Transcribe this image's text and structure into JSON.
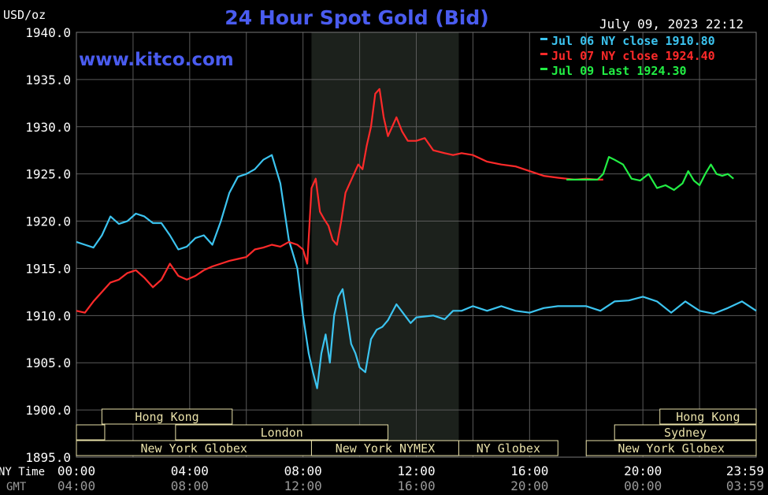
{
  "header": {
    "unit": "USD/oz",
    "title": "24 Hour Spot Gold (Bid)",
    "datetime": "July 09, 2023 22:12",
    "watermark": "www.kitco.com"
  },
  "legend": {
    "placement": "top-right",
    "items": [
      {
        "label": "Jul 06 NY close 1910.80",
        "color": "#3cc4f0"
      },
      {
        "label": "Jul 07 NY close 1924.40",
        "color": "#ff2a2a"
      },
      {
        "label": "Jul 09 Last 1924.30",
        "color": "#22ee44"
      }
    ]
  },
  "axis": {
    "ny_time_label": "NY Time",
    "gmt_label": "GMT",
    "x_ticks": [
      {
        "hour": 0,
        "ny": "00:00",
        "gmt": "04:00"
      },
      {
        "hour": 4,
        "ny": "04:00",
        "gmt": "08:00"
      },
      {
        "hour": 8,
        "ny": "08:00",
        "gmt": "12:00"
      },
      {
        "hour": 12,
        "ny": "12:00",
        "gmt": "16:00"
      },
      {
        "hour": 16,
        "ny": "16:00",
        "gmt": "20:00"
      },
      {
        "hour": 20,
        "ny": "20:00",
        "gmt": "00:00"
      },
      {
        "hour": 23.983,
        "ny": "23:59",
        "gmt": "03:59"
      }
    ],
    "y_ticks": [
      "1940.0",
      "1935.0",
      "1930.0",
      "1925.0",
      "1920.0",
      "1915.0",
      "1910.0",
      "1905.0",
      "1900.0",
      "1895.0"
    ]
  },
  "sessions": [
    {
      "label": "Hong Kong",
      "row": 0,
      "start": 0.9,
      "end": 5.5
    },
    {
      "label": "",
      "row": 1,
      "start": 0,
      "end": 1.0
    },
    {
      "label": "London",
      "row": 1,
      "start": 3.5,
      "end": 11.0
    },
    {
      "label": "New York Globex",
      "row": 2,
      "start": 0,
      "end": 8.3
    },
    {
      "label": "New York NYMEX",
      "row": 2,
      "start": 8.3,
      "end": 13.5
    },
    {
      "label": "NY Globex",
      "row": 2,
      "start": 13.5,
      "end": 17.0
    },
    {
      "label": "Hong Kong",
      "row": 0,
      "start": 20.6,
      "end": 24.0
    },
    {
      "label": "Sydney",
      "row": 1,
      "start": 19.0,
      "end": 24.0
    },
    {
      "label": "New York Globex",
      "row": 2,
      "start": 18.0,
      "end": 24.0
    }
  ],
  "colors": {
    "background": "#000000",
    "grid": "#5a5a5a",
    "shade": "#1c211c",
    "title": "#4a5cf0",
    "text": "#ffffff",
    "axis_sub": "#9a9a9a"
  },
  "chart_data": {
    "type": "line",
    "ylim": [
      1895,
      1940
    ],
    "xlim": [
      0,
      24
    ],
    "x_unit": "NY Time (hours)",
    "shaded_region": [
      8.3,
      13.5
    ],
    "grid": true,
    "series": [
      {
        "name": "Jul 06",
        "color": "#3cc4f0",
        "x": [
          0,
          0.3,
          0.6,
          0.9,
          1.2,
          1.5,
          1.8,
          2.1,
          2.4,
          2.7,
          3.0,
          3.3,
          3.6,
          3.9,
          4.2,
          4.5,
          4.8,
          5.1,
          5.4,
          5.7,
          6.0,
          6.3,
          6.6,
          6.9,
          7.2,
          7.5,
          7.8,
          8.0,
          8.2,
          8.35,
          8.5,
          8.65,
          8.8,
          8.95,
          9.1,
          9.25,
          9.4,
          9.55,
          9.7,
          9.85,
          10.0,
          10.2,
          10.4,
          10.6,
          10.8,
          11.0,
          11.3,
          11.6,
          11.8,
          12.0,
          12.3,
          12.6,
          13.0,
          13.3,
          13.6,
          14.0,
          14.5,
          15.0,
          15.5,
          16.0,
          16.5,
          17.0,
          17.5,
          18.0,
          18.5,
          19.0,
          19.5,
          20.0,
          20.5,
          21.0,
          21.5,
          22.0,
          22.5,
          23.0,
          23.5,
          24.0
        ],
        "y": [
          1917.8,
          1917.5,
          1917.2,
          1918.5,
          1920.5,
          1919.7,
          1920.0,
          1920.8,
          1920.5,
          1919.8,
          1919.8,
          1918.5,
          1917.0,
          1917.3,
          1918.2,
          1918.5,
          1917.5,
          1920.0,
          1923.0,
          1924.7,
          1925.0,
          1925.5,
          1926.5,
          1927.0,
          1924.0,
          1918.0,
          1915.0,
          1910.0,
          1906.0,
          1904.0,
          1902.3,
          1906.0,
          1908.0,
          1905.0,
          1910.0,
          1912.0,
          1912.8,
          1910.0,
          1907.0,
          1906.0,
          1904.5,
          1904.0,
          1907.5,
          1908.5,
          1908.8,
          1909.5,
          1911.2,
          1910.0,
          1909.2,
          1909.8,
          1909.9,
          1910.0,
          1909.6,
          1910.5,
          1910.5,
          1911.0,
          1910.5,
          1911.0,
          1910.5,
          1910.3,
          1910.8,
          1911.0,
          1911.0,
          1911.0,
          1910.5,
          1911.5,
          1911.6,
          1912.0,
          1911.5,
          1910.3,
          1911.5,
          1910.5,
          1910.2,
          1910.8,
          1911.5,
          1910.5
        ]
      },
      {
        "name": "Jul 07",
        "color": "#ff2a2a",
        "x": [
          0,
          0.3,
          0.6,
          0.9,
          1.2,
          1.5,
          1.8,
          2.1,
          2.4,
          2.7,
          3.0,
          3.3,
          3.6,
          3.9,
          4.2,
          4.5,
          4.8,
          5.1,
          5.4,
          5.7,
          6.0,
          6.3,
          6.6,
          6.9,
          7.2,
          7.5,
          7.8,
          8.0,
          8.15,
          8.3,
          8.45,
          8.6,
          8.75,
          8.9,
          9.05,
          9.2,
          9.35,
          9.5,
          9.65,
          9.8,
          9.95,
          10.1,
          10.25,
          10.4,
          10.55,
          10.7,
          10.85,
          11.0,
          11.15,
          11.3,
          11.5,
          11.7,
          12.0,
          12.3,
          12.6,
          13.0,
          13.3,
          13.6,
          14.0,
          14.5,
          15.0,
          15.5,
          16.0,
          16.5,
          17.0,
          17.3,
          17.6,
          18.0,
          18.4,
          18.6
        ],
        "y": [
          1910.5,
          1910.3,
          1911.5,
          1912.5,
          1913.5,
          1913.8,
          1914.5,
          1914.8,
          1914.0,
          1913.0,
          1913.8,
          1915.5,
          1914.2,
          1913.8,
          1914.2,
          1914.8,
          1915.2,
          1915.5,
          1915.8,
          1916.0,
          1916.2,
          1917.0,
          1917.2,
          1917.5,
          1917.3,
          1917.8,
          1917.5,
          1917.0,
          1915.5,
          1923.5,
          1924.5,
          1921.0,
          1920.2,
          1919.5,
          1918.0,
          1917.5,
          1920.0,
          1923.0,
          1924.0,
          1925.0,
          1926.0,
          1925.5,
          1928.0,
          1930.0,
          1933.5,
          1934.0,
          1931.0,
          1929.0,
          1930.0,
          1931.0,
          1929.5,
          1928.5,
          1928.5,
          1928.8,
          1927.5,
          1927.2,
          1927.0,
          1927.2,
          1927.0,
          1926.3,
          1926.0,
          1925.8,
          1925.3,
          1924.8,
          1924.6,
          1924.5,
          1924.4,
          1924.5,
          1924.4,
          1924.4
        ]
      },
      {
        "name": "Jul 09",
        "color": "#22ee44",
        "x": [
          17.3,
          18.0,
          18.4,
          18.6,
          18.8,
          19.0,
          19.3,
          19.6,
          19.9,
          20.2,
          20.5,
          20.8,
          21.1,
          21.4,
          21.6,
          21.8,
          22.0,
          22.2,
          22.4,
          22.6,
          22.8,
          23.0,
          23.2
        ],
        "y": [
          1924.4,
          1924.4,
          1924.4,
          1925.0,
          1926.8,
          1926.5,
          1926.0,
          1924.5,
          1924.3,
          1925.0,
          1923.5,
          1923.8,
          1923.3,
          1924.0,
          1925.3,
          1924.3,
          1923.8,
          1925.0,
          1926.0,
          1925.0,
          1924.8,
          1925.0,
          1924.5
        ]
      }
    ]
  }
}
